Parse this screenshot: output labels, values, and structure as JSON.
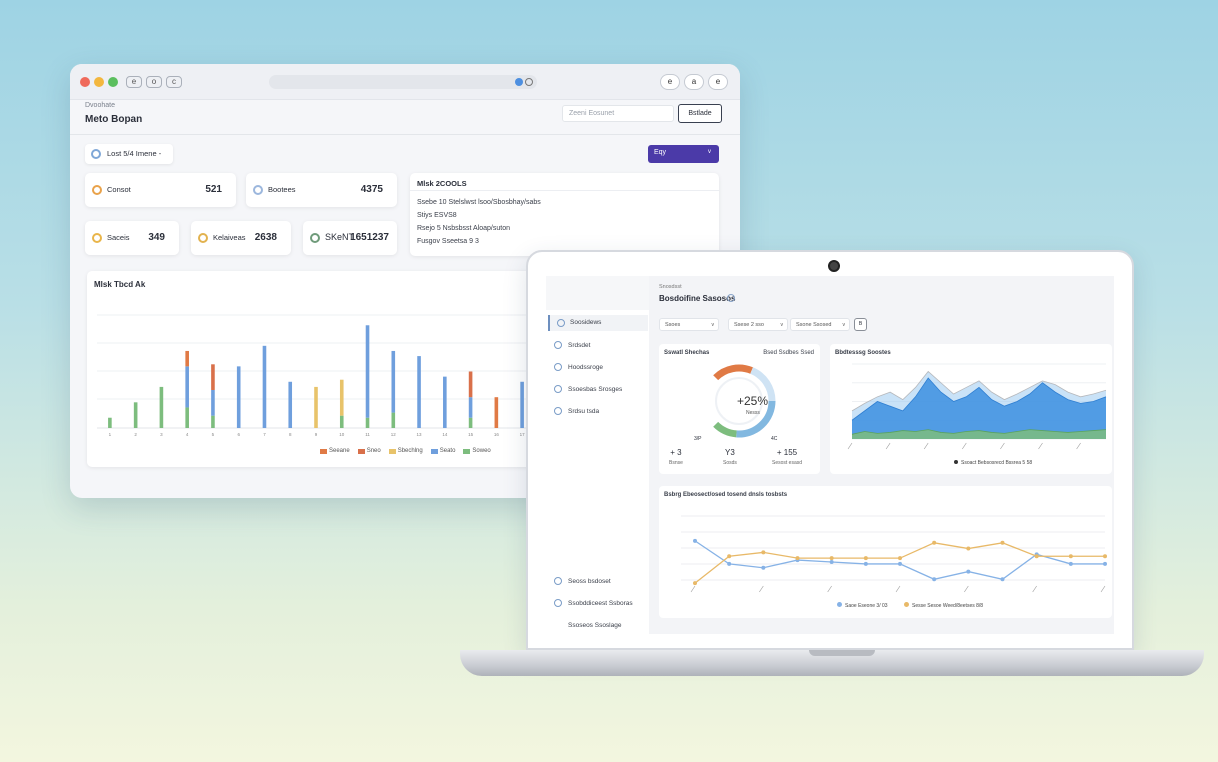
{
  "browser": {
    "nav_buttons": [
      "e",
      "o",
      "c"
    ],
    "chrome_buttons": [
      "e",
      "a",
      "e"
    ],
    "crumb": "Dvoohate",
    "title": "Meto Bopan",
    "search_placeholder": "Zeeni Eosunet",
    "export_label": "Bstlade",
    "filter_label": "Lost 5/4 Imene",
    "filter_caret": "-",
    "primary_label": "Eqy",
    "primary_caret": "v",
    "kpis": [
      {
        "label": "Consot",
        "value": "521",
        "color": "#e9a24a"
      },
      {
        "label": "Bootees",
        "value": "4375",
        "color": "#9cb7dd"
      },
      {
        "label": "Saceis",
        "value": "349",
        "color": "#e9b54a"
      },
      {
        "label": "Kelaiveas",
        "value": "2638",
        "color": "#e2b24f"
      },
      {
        "label": "SKeNT",
        "value": "1651237",
        "color": "#6f9b7a"
      }
    ],
    "info": {
      "title": "Mlsk 2COOLS",
      "lines": [
        "Ssebe 10   Stelslwst lsoo/Sbosbhay/sabs",
        "Stiys   ESVS8",
        "Rsejo 5    Nsbsbsst Aloap/suton",
        "Fusgov Sseetsa    9 3"
      ]
    },
    "bar_title": "Mlsk Tbcd Ak",
    "legend": [
      {
        "label": "Seeane",
        "color": "#e07a45"
      },
      {
        "label": "Sneo",
        "color": "#d9704a"
      },
      {
        "label": "Sbechlng",
        "color": "#e8c36a"
      },
      {
        "label": "Seato",
        "color": "#6f9fdd"
      },
      {
        "label": "Soweo",
        "color": "#7dbd7e"
      }
    ]
  },
  "chart_data": [
    {
      "type": "bar",
      "title": "Mlsk Tbcd Ak",
      "categories": [
        "1",
        "2",
        "3",
        "4",
        "5",
        "6",
        "7",
        "8",
        "9",
        "10",
        "11",
        "12",
        "13",
        "14",
        "15",
        "16",
        "17"
      ],
      "series": [
        {
          "name": "Soweo",
          "values": [
            10,
            25,
            40,
            20,
            12,
            0,
            0,
            0,
            0,
            12,
            10,
            15,
            0,
            0,
            10,
            0,
            0
          ]
        },
        {
          "name": "Seato",
          "values": [
            0,
            0,
            0,
            40,
            25,
            60,
            80,
            45,
            0,
            0,
            90,
            60,
            70,
            50,
            20,
            0,
            45
          ]
        },
        {
          "name": "Sbechlng",
          "values": [
            0,
            0,
            0,
            0,
            0,
            0,
            0,
            0,
            40,
            35,
            0,
            0,
            0,
            0,
            0,
            0,
            0
          ]
        },
        {
          "name": "Sneo",
          "values": [
            0,
            0,
            0,
            0,
            25,
            0,
            0,
            0,
            0,
            0,
            0,
            0,
            0,
            0,
            25,
            0,
            0
          ]
        },
        {
          "name": "Seeane",
          "values": [
            0,
            0,
            0,
            15,
            0,
            0,
            0,
            0,
            0,
            0,
            0,
            0,
            0,
            0,
            0,
            30,
            0
          ]
        }
      ],
      "ylim": [
        0,
        110
      ]
    },
    {
      "type": "pie",
      "title": "Sswatl Shechas",
      "values": [
        25,
        25,
        35,
        15
      ],
      "colors": [
        "#e07a45",
        "#cfe3f4",
        "#82b8e0",
        "#7dbd7e"
      ]
    },
    {
      "type": "area",
      "title": "Bbdtesssg Soostes",
      "x": [
        0,
        1,
        2,
        3,
        4,
        5,
        6,
        7,
        8,
        9,
        10,
        11,
        12,
        13,
        14,
        15,
        16,
        17,
        18,
        19,
        20
      ],
      "series": [
        {
          "name": "back",
          "values": [
            30,
            38,
            45,
            50,
            42,
            55,
            72,
            60,
            48,
            55,
            62,
            50,
            42,
            48,
            55,
            62,
            58,
            50,
            45,
            48,
            52
          ]
        },
        {
          "name": "mid",
          "values": [
            20,
            30,
            40,
            35,
            30,
            45,
            65,
            50,
            40,
            45,
            55,
            42,
            35,
            40,
            48,
            60,
            50,
            42,
            38,
            40,
            45
          ]
        },
        {
          "name": "green",
          "values": [
            5,
            8,
            6,
            7,
            9,
            8,
            10,
            7,
            6,
            8,
            9,
            7,
            6,
            8,
            10,
            9,
            8,
            7,
            8,
            9,
            10
          ]
        }
      ],
      "ylim": [
        0,
        80
      ]
    },
    {
      "type": "line",
      "title": "Bsbrg Ebeosect/osed tosend dnsls tosbsts",
      "x": [
        0,
        1,
        2,
        3,
        4,
        5,
        6,
        7,
        8,
        9,
        10,
        11,
        12
      ],
      "series": [
        {
          "name": "Saoe Eseone 3/ 03",
          "color": "#86b2e6",
          "values": [
            72,
            48,
            44,
            52,
            50,
            48,
            48,
            32,
            40,
            32,
            58,
            48,
            48
          ]
        },
        {
          "name": "Sesse Sesoe Weed/8eetses 8/8",
          "color": "#e8b968",
          "values": [
            28,
            56,
            60,
            54,
            54,
            54,
            54,
            70,
            64,
            70,
            56,
            56,
            56
          ]
        }
      ],
      "ylim": [
        0,
        100
      ]
    }
  ],
  "laptop": {
    "crumb": "Snosdsst",
    "title": "Bosdoifine Sasosos",
    "sidebar_items": [
      "Soosidews",
      "Srdsdet",
      "Hoodssroge",
      "Ssoesbas Srosges",
      "Srdsu tsda"
    ],
    "sidebar_bottom": [
      "Seoss bsdoset",
      "Ssobddiceest Ssboras",
      "Ssoseos Ssoslage"
    ],
    "selects": [
      "Ssoes",
      "Ssese 2 sso",
      "Ssone Ssosed"
    ],
    "select_caret": "v",
    "select_button": "B",
    "gauge": {
      "title_left": "Sswatl Shechas",
      "title_right": "Bsed Ssdbes Ssed",
      "center": "+25%",
      "center_sub": "Nesss",
      "labels": [
        "3/P",
        "4C"
      ],
      "stats": [
        {
          "value": "+ 3",
          "label": "Bsnse"
        },
        {
          "value": "Y3",
          "label": "Sosds"
        },
        {
          "value": "+ 155",
          "label": "Sesost esasd"
        }
      ]
    },
    "area_title": "Bbdtesssg Soostes",
    "area_legend": "Ssoact Bebsosrecd Bssrea 5 58",
    "line_title": "Bsbrg Ebeosect/osed tosend dnsls tosbsts",
    "line_legend": [
      "Saoe Eseone 3/ 03",
      "Sesse Sesoe Weed/8eetses 8/8"
    ]
  }
}
